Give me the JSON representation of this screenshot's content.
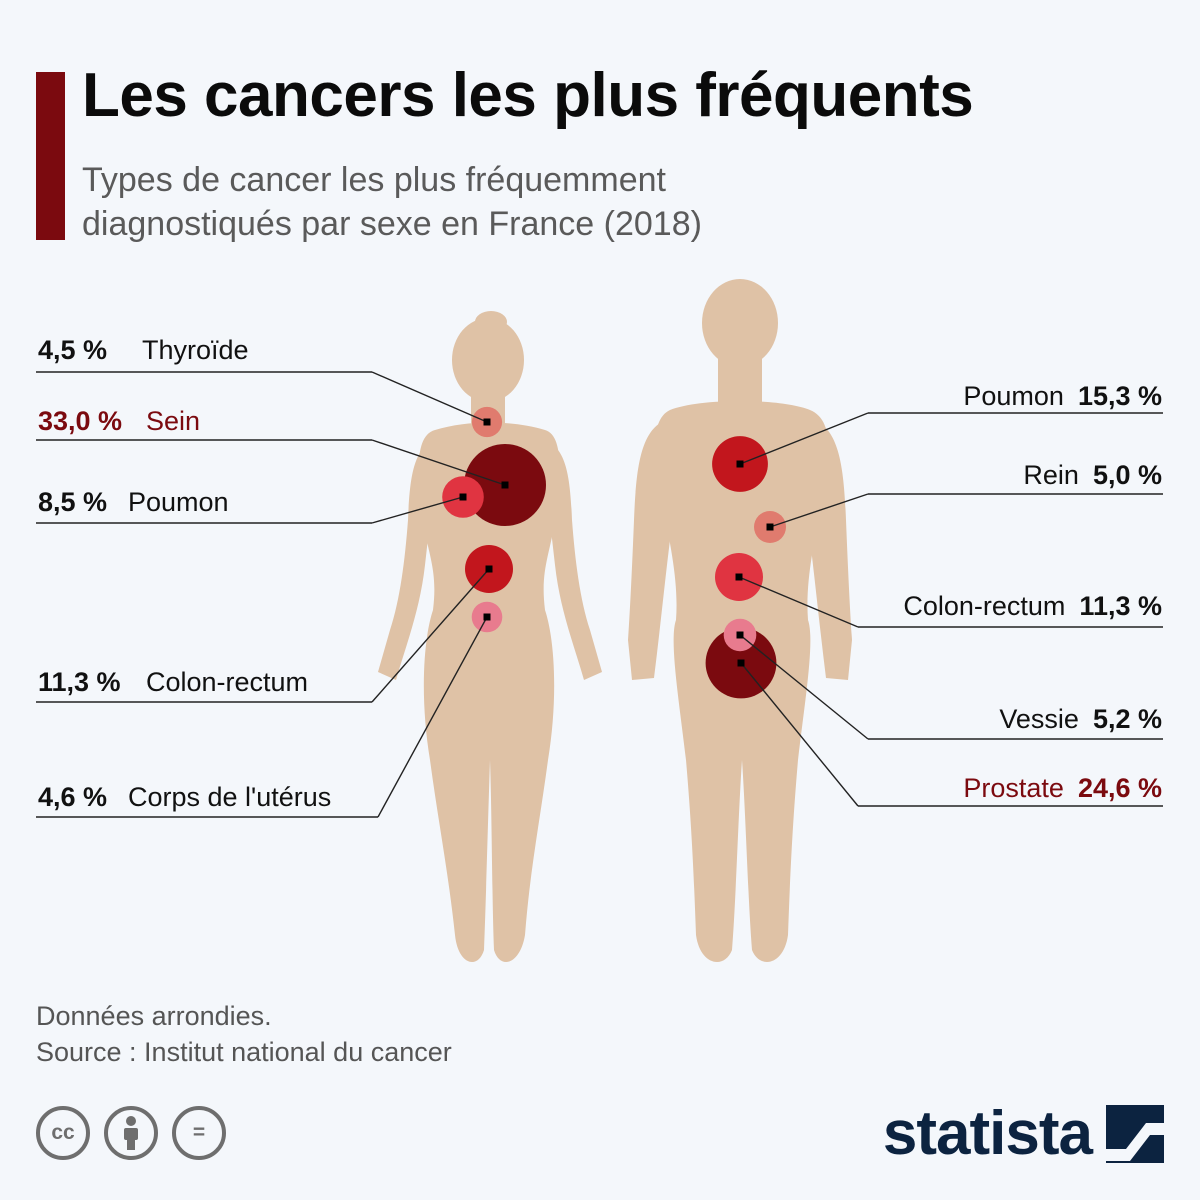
{
  "header": {
    "title": "Les cancers les plus fréquents",
    "subtitle": "Types de cancer les plus fréquemment diagnostiqués par sexe en France (2018)"
  },
  "colors": {
    "background": "#f4f7fb",
    "silhouette": "#dfc2a6",
    "accent": "#7b0a0f",
    "bubble_dark": "#7b0a0f",
    "bubble_red": "#c2161d",
    "bubble_medium": "#e03441",
    "bubble_light": "#e07b6e",
    "bubble_pink": "#e87b8e"
  },
  "chart_data": {
    "type": "bubble",
    "unit": "%",
    "series": [
      {
        "name": "Femmes",
        "points": [
          {
            "label": "Thyroïde",
            "value": 4.5,
            "display": "4,5 %",
            "highlight": false
          },
          {
            "label": "Sein",
            "value": 33.0,
            "display": "33,0 %",
            "highlight": true
          },
          {
            "label": "Poumon",
            "value": 8.5,
            "display": "8,5 %",
            "highlight": false
          },
          {
            "label": "Colon-rectum",
            "value": 11.3,
            "display": "11,3 %",
            "highlight": false
          },
          {
            "label": "Corps de l'utérus",
            "value": 4.6,
            "display": "4,6 %",
            "highlight": false
          }
        ]
      },
      {
        "name": "Hommes",
        "points": [
          {
            "label": "Poumon",
            "value": 15.3,
            "display": "15,3 %",
            "highlight": false
          },
          {
            "label": "Rein",
            "value": 5.0,
            "display": "5,0 %",
            "highlight": false
          },
          {
            "label": "Colon-rectum",
            "value": 11.3,
            "display": "11,3 %",
            "highlight": false
          },
          {
            "label": "Vessie",
            "value": 5.2,
            "display": "5,2 %",
            "highlight": false
          },
          {
            "label": "Prostate",
            "value": 24.6,
            "display": "24,6 %",
            "highlight": true
          }
        ]
      }
    ]
  },
  "footer": {
    "note": "Données arrondies.",
    "source": "Source : Institut national du cancer",
    "licenses": [
      {
        "icon": "cc-icon",
        "text": "cc"
      },
      {
        "icon": "attribution-icon",
        "text": ""
      },
      {
        "icon": "no-derivatives-icon",
        "text": "="
      }
    ],
    "brand": "statista"
  }
}
